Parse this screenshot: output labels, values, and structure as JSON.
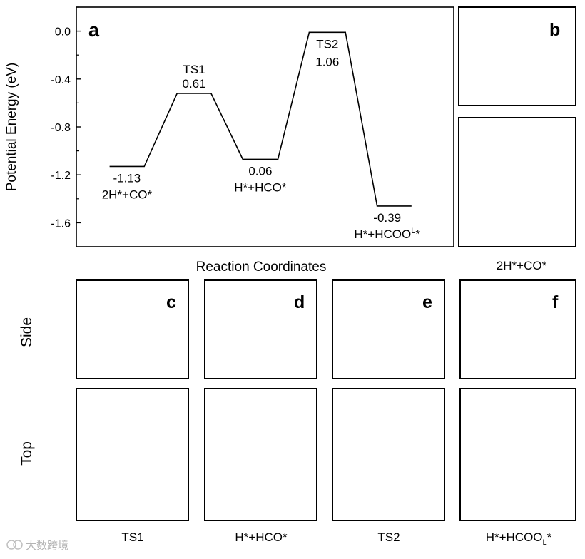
{
  "chart_data": {
    "type": "line",
    "panel_label": "a",
    "ylabel": "Potential Energy (eV)",
    "xlabel": "Reaction Coordinates",
    "ylim": [
      -1.8,
      0.2
    ],
    "yticks": [
      "0.0",
      "-0.4",
      "-0.8",
      "-1.2",
      "-1.6"
    ],
    "ytick_values": [
      0.0,
      -0.4,
      -0.8,
      -1.2,
      -1.6
    ],
    "levels": [
      {
        "name": "2H*+CO*",
        "value_label": "-1.13",
        "energy": -1.13
      },
      {
        "name": "TS1",
        "value_label": "0.61",
        "energy": -0.52
      },
      {
        "name": "H*+HCO*",
        "value_label": "0.06",
        "energy": -1.07
      },
      {
        "name": "TS2",
        "value_label": "1.06",
        "energy": -0.01
      },
      {
        "name": "H*+HCOO",
        "name_sup": "L",
        "name_tail": "*",
        "value_label": "-0.39",
        "energy": -1.46
      }
    ]
  },
  "panels": {
    "b": {
      "label": "b",
      "caption": "2H*+CO*"
    },
    "c": {
      "label": "c",
      "caption": "TS1"
    },
    "d": {
      "label": "d",
      "caption": "H*+HCO*"
    },
    "e": {
      "label": "e",
      "caption": "TS2"
    },
    "f": {
      "label": "f",
      "caption_main": "H*+HCOO",
      "caption_sub": "L",
      "caption_tail": "*"
    }
  },
  "row_labels": {
    "side": "Side",
    "top": "Top"
  },
  "colors": {
    "oxygen": "#e8120c",
    "metal": "#6f7390",
    "bond": "#7d809c",
    "carbon": "#5c3b3b",
    "fluorine_cyan": "#5fe0ea",
    "hydrogen": "#f2f2f2"
  },
  "watermark": "大数跨境"
}
